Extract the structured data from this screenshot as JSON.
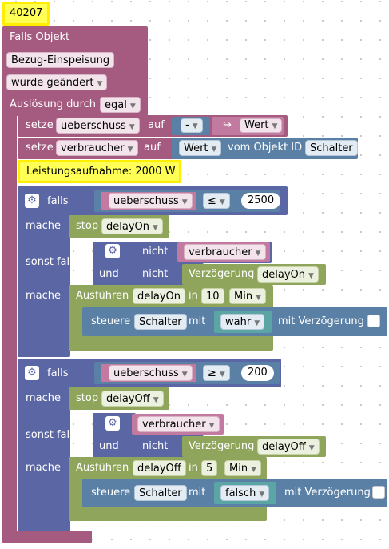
{
  "top_comment": "40207",
  "trigger": {
    "label": "Falls Objekt",
    "object": "Bezug-Einspeisung",
    "condition": "wurde geändert",
    "trigger_label": "Auslösung durch",
    "trigger_value": "egal"
  },
  "set1": {
    "setze": "setze",
    "var": "ueberschuss",
    "auf": "auf",
    "op": "-",
    "value": "Wert",
    "arrow": "↪"
  },
  "set2": {
    "setze": "setze",
    "var": "verbraucher",
    "auf": "auf",
    "value": "Wert",
    "from_label": "vom Objekt ID",
    "object": "Schalter"
  },
  "comment2": "Leistungsaufnahme: 2000 W",
  "if1": {
    "falls": "falls",
    "var": "ueberschuss",
    "op": "≤",
    "num": "2500",
    "mache": "mache",
    "stop": "stop",
    "stop_target": "delayOn",
    "sonst_falls": "sonst falls",
    "nicht": "nicht",
    "nicht_var": "verbraucher",
    "und": "und",
    "nicht2": "nicht",
    "delay_label": "Verzögerung",
    "delay_var": "delayOn",
    "mache2": "mache",
    "run_label": "Ausführen",
    "run_var": "delayOn",
    "in": "in",
    "run_num": "10",
    "run_unit": "Min",
    "ctrl": "steuere",
    "ctrl_obj": "Schalter",
    "mit": "mit",
    "ctrl_val": "wahr",
    "mit_delay": "mit Verzögerung"
  },
  "if2": {
    "falls": "falls",
    "var": "ueberschuss",
    "op": "≥",
    "num": "200",
    "mache": "mache",
    "stop": "stop",
    "stop_target": "delayOff",
    "sonst_falls": "sonst falls",
    "cond_var": "verbraucher",
    "und": "und",
    "nicht": "nicht",
    "delay_label": "Verzögerung",
    "delay_var": "delayOff",
    "mache2": "mache",
    "run_label": "Ausführen",
    "run_var": "delayOff",
    "in": "in",
    "run_num": "5",
    "run_unit": "Min",
    "ctrl": "steuere",
    "ctrl_obj": "Schalter",
    "mit": "mit",
    "ctrl_val": "falsch",
    "mit_delay": "mit Verzögerung"
  },
  "colors": {
    "event": "#a55b80",
    "logic": "#5b80a5",
    "control": "#5b67a5",
    "timer": "#8fa55b",
    "comment": "#ffff55"
  }
}
